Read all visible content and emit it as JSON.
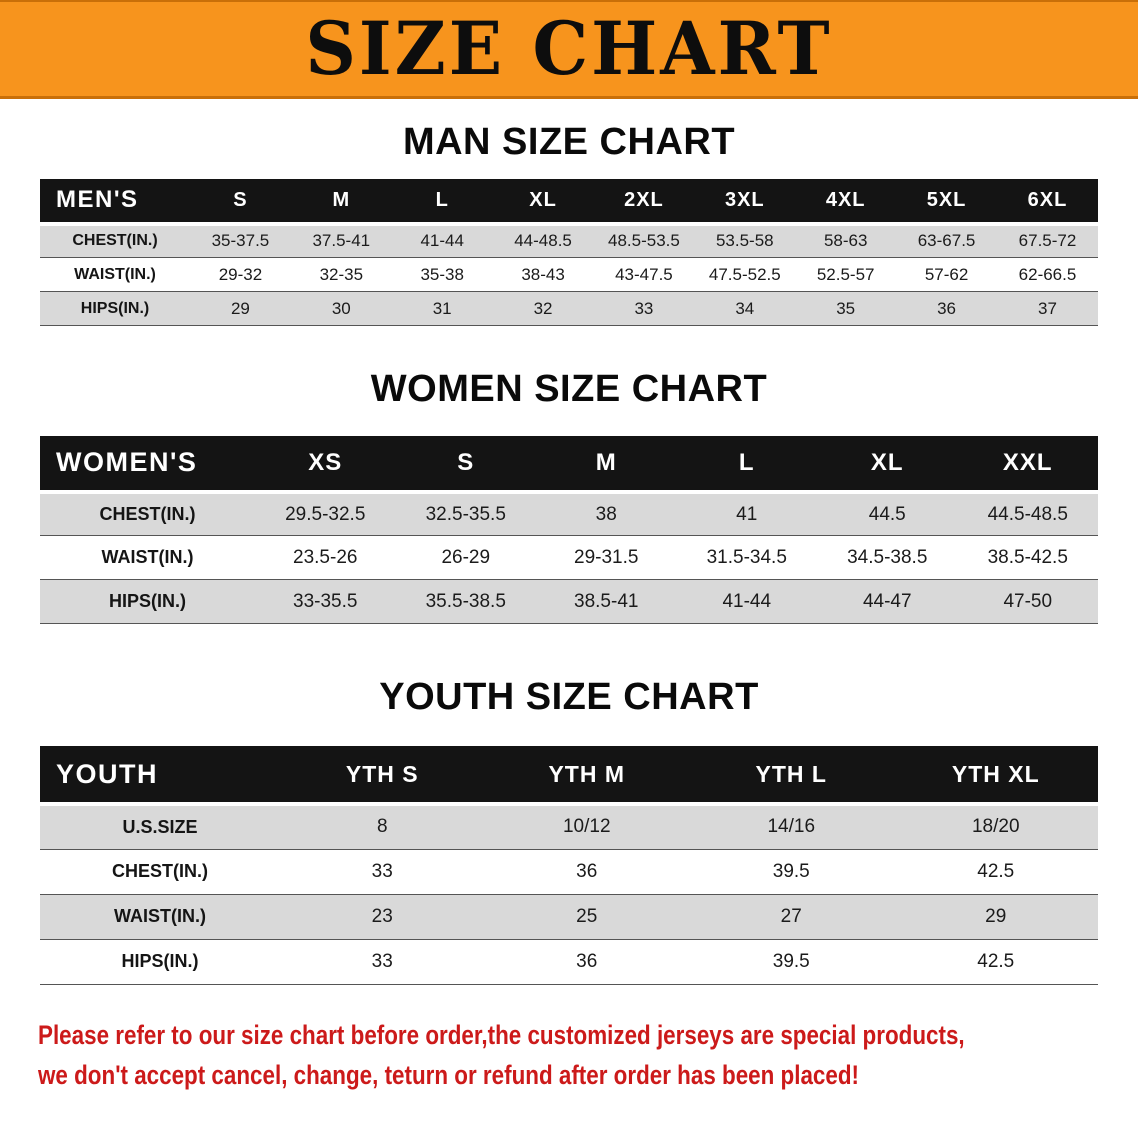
{
  "banner": {
    "title": "SIZE CHART",
    "bg_color": "#f7941d"
  },
  "chart_data": [
    {
      "type": "table",
      "title": "MAN SIZE CHART",
      "header": [
        "MEN'S",
        "S",
        "M",
        "L",
        "XL",
        "2XL",
        "3XL",
        "4XL",
        "5XL",
        "6XL"
      ],
      "rows": [
        [
          "CHEST(IN.)",
          "35-37.5",
          "37.5-41",
          "41-44",
          "44-48.5",
          "48.5-53.5",
          "53.5-58",
          "58-63",
          "63-67.5",
          "67.5-72"
        ],
        [
          "WAIST(IN.)",
          "29-32",
          "32-35",
          "35-38",
          "38-43",
          "43-47.5",
          "47.5-52.5",
          "52.5-57",
          "57-62",
          "62-66.5"
        ],
        [
          "HIPS(IN.)",
          "29",
          "30",
          "31",
          "32",
          "33",
          "34",
          "35",
          "36",
          "37"
        ]
      ]
    },
    {
      "type": "table",
      "title": "WOMEN SIZE CHART",
      "header": [
        "WOMEN'S",
        "XS",
        "S",
        "M",
        "L",
        "XL",
        "XXL"
      ],
      "rows": [
        [
          "CHEST(IN.)",
          "29.5-32.5",
          "32.5-35.5",
          "38",
          "41",
          "44.5",
          "44.5-48.5"
        ],
        [
          "WAIST(IN.)",
          "23.5-26",
          "26-29",
          "29-31.5",
          "31.5-34.5",
          "34.5-38.5",
          "38.5-42.5"
        ],
        [
          "HIPS(IN.)",
          "33-35.5",
          "35.5-38.5",
          "38.5-41",
          "41-44",
          "44-47",
          "47-50"
        ]
      ]
    },
    {
      "type": "table",
      "title": "YOUTH SIZE CHART",
      "header": [
        "YOUTH",
        "YTH S",
        "YTH M",
        "YTH L",
        "YTH XL"
      ],
      "rows": [
        [
          "U.S.SIZE",
          "8",
          "10/12",
          "14/16",
          "18/20"
        ],
        [
          "CHEST(IN.)",
          "33",
          "36",
          "39.5",
          "42.5"
        ],
        [
          "WAIST(IN.)",
          "23",
          "25",
          "27",
          "29"
        ],
        [
          "HIPS(IN.)",
          "33",
          "36",
          "39.5",
          "42.5"
        ]
      ]
    }
  ],
  "notice": {
    "line1": "Please refer to our size chart before order,the customized jerseys are special products,",
    "line2": "we don't accept cancel, change, teturn or refund after order has been placed!",
    "color": "#cc1a1a"
  },
  "colors": {
    "banner": "#f7941d",
    "table_header": "#141414",
    "row_stripe": "#d9d9d9"
  }
}
